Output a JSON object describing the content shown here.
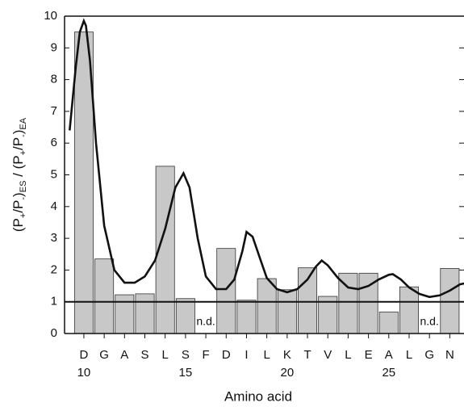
{
  "chart_data": {
    "type": "bar",
    "categories": [
      "D",
      "G",
      "A",
      "S",
      "L",
      "S",
      "F",
      "D",
      "I",
      "L",
      "K",
      "T",
      "V",
      "L",
      "E",
      "A",
      "L",
      "G",
      "N"
    ],
    "x": [
      10,
      11,
      12,
      13,
      14,
      15,
      16,
      17,
      18,
      19,
      20,
      21,
      22,
      23,
      24,
      25,
      26,
      27,
      28
    ],
    "values": [
      9.5,
      2.35,
      1.22,
      1.25,
      5.27,
      1.1,
      null,
      2.68,
      1.05,
      1.73,
      1.38,
      2.07,
      1.17,
      1.9,
      1.9,
      0.68,
      1.47,
      null,
      2.05
    ],
    "color": "#c8c8c8",
    "na_label": "n.d.",
    "xlim": [
      9.05,
      28.7
    ],
    "xticks": [
      10,
      15,
      20,
      25
    ],
    "ylim": [
      0,
      10
    ],
    "yticks": [
      0,
      1,
      2,
      3,
      4,
      5,
      6,
      7,
      8,
      9,
      10
    ],
    "reference_line": 1,
    "curve": {
      "color": "#111111",
      "x": [
        9.3,
        9.6,
        9.8,
        10.0,
        10.1,
        10.3,
        10.6,
        11.0,
        11.5,
        12.0,
        12.5,
        13.0,
        13.5,
        14.0,
        14.5,
        14.9,
        15.2,
        15.6,
        16.0,
        16.5,
        17.0,
        17.4,
        17.8,
        18.0,
        18.3,
        18.7,
        19.0,
        19.5,
        20.0,
        20.5,
        21.0,
        21.4,
        21.7,
        22.0,
        22.5,
        23.0,
        23.5,
        24.0,
        24.5,
        25.0,
        25.2,
        25.6,
        26.0,
        26.5,
        27.0,
        27.5,
        28.0,
        28.5,
        28.9,
        29.3
      ],
      "values": [
        6.4,
        8.4,
        9.5,
        9.85,
        9.7,
        8.6,
        6.0,
        3.4,
        2.0,
        1.6,
        1.6,
        1.8,
        2.3,
        3.3,
        4.6,
        5.05,
        4.6,
        3.0,
        1.8,
        1.4,
        1.4,
        1.7,
        2.6,
        3.2,
        3.05,
        2.3,
        1.75,
        1.4,
        1.3,
        1.4,
        1.7,
        2.1,
        2.3,
        2.15,
        1.75,
        1.45,
        1.4,
        1.5,
        1.7,
        1.85,
        1.87,
        1.7,
        1.45,
        1.25,
        1.15,
        1.2,
        1.35,
        1.55,
        1.6,
        1.45
      ]
    },
    "xlabel": "Amino acid",
    "ylabel": [
      {
        "text": "(P"
      },
      {
        "text": "+",
        "sub": true
      },
      {
        "text": "/P"
      },
      {
        "text": "-",
        "sub": true
      },
      {
        "text": ")"
      },
      {
        "text": "ES",
        "sub": true
      },
      {
        "text": " / (P"
      },
      {
        "text": "+",
        "sub": true
      },
      {
        "text": "/P"
      },
      {
        "text": "-",
        "sub": true
      },
      {
        "text": ")"
      },
      {
        "text": "EA",
        "sub": true
      }
    ]
  }
}
